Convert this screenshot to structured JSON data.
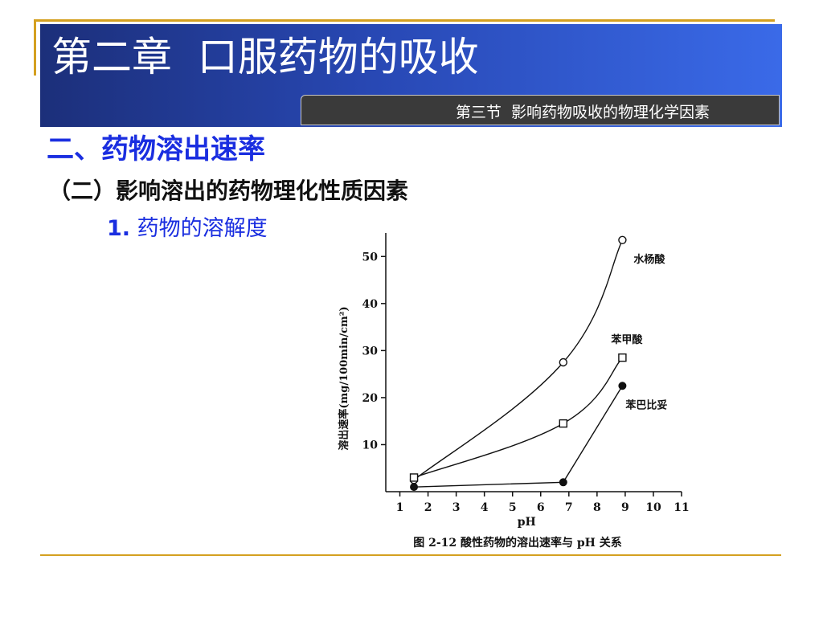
{
  "slide": {
    "title": "第二章  口服药物的吸收",
    "section": "第三节  影响药物吸收的物理化学因素",
    "heading1": "二、药物溶出速率",
    "heading2": "（二）影响溶出的药物理化性质因素",
    "heading3_num": "1.",
    "heading3_text": " 药物的溶解度"
  },
  "colors": {
    "title_bar": "#2848b4",
    "heading_blue": "#1a2ee0",
    "rule_gold": "#d4a020"
  },
  "chart_data": {
    "type": "line",
    "title": "",
    "caption": "图 2-12    酸性药物的溶出速率与 pH 关系",
    "xlabel": "pH",
    "ylabel": "溶出速率(mg/100min/cm²)",
    "xlim": [
      0.5,
      11
    ],
    "ylim": [
      0,
      55
    ],
    "xticks": [
      1,
      2,
      3,
      4,
      5,
      6,
      7,
      8,
      9,
      10,
      11
    ],
    "yticks": [
      10,
      20,
      30,
      40,
      50
    ],
    "grid": false,
    "series": [
      {
        "name": "水杨酸",
        "marker": "open-circle",
        "x": [
          1.5,
          6.8,
          8.9
        ],
        "y": [
          2.5,
          27.5,
          53.5
        ]
      },
      {
        "name": "苯甲酸",
        "marker": "open-square",
        "x": [
          1.5,
          6.8,
          8.9
        ],
        "y": [
          3,
          14.5,
          28.5
        ]
      },
      {
        "name": "苯巴比妥",
        "marker": "filled-circle",
        "x": [
          1.5,
          6.8,
          8.9
        ],
        "y": [
          1,
          2,
          22.5
        ]
      }
    ]
  }
}
